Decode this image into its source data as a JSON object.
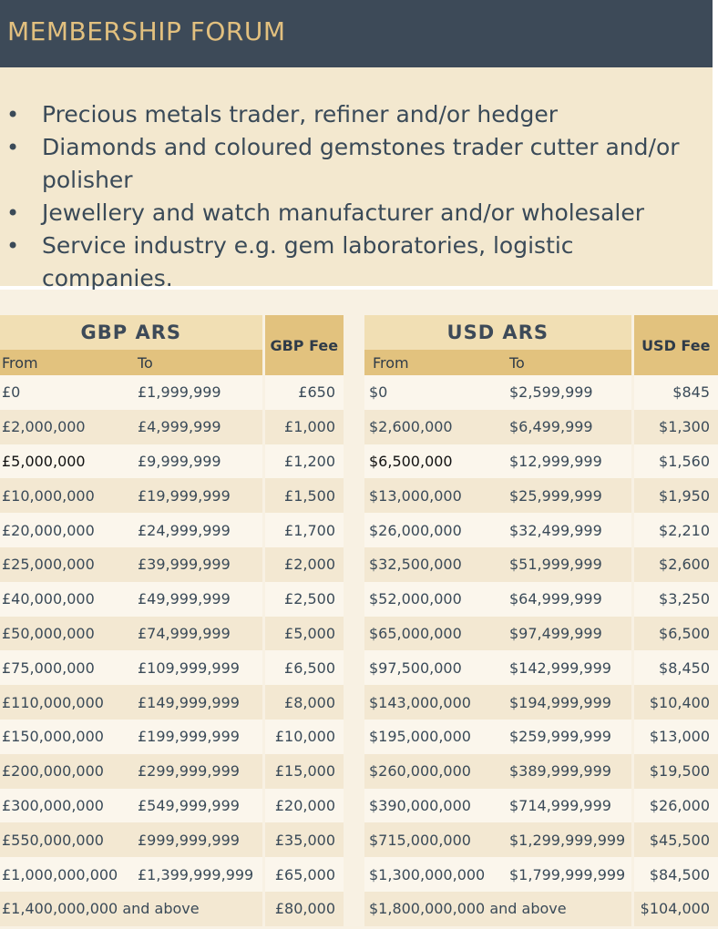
{
  "header": {
    "title": "MEMBERSHIP FORUM"
  },
  "intro": {
    "bullets": [
      "Precious metals trader, refiner and/or hedger",
      "Diamonds and coloured gemstones trader cutter and/or polisher",
      "Jewellery and watch manufacturer and/or wholesaler",
      "Service industry e.g. gem laboratories, logistic companies."
    ]
  },
  "gbp_table": {
    "group_title": "GBP ARS",
    "fee_title": "GBP Fee",
    "from_label": "From",
    "to_label": "To",
    "rows": [
      {
        "from": "£0",
        "to": "£1,999,999",
        "fee": "£650"
      },
      {
        "from": "£2,000,000",
        "to": "£4,999,999",
        "fee": "£1,000"
      },
      {
        "from": "£5,000,000",
        "to": "£9,999,999",
        "fee": "£1,200"
      },
      {
        "from": "£10,000,000",
        "to": "£19,999,999",
        "fee": "£1,500"
      },
      {
        "from": "£20,000,000",
        "to": "£24,999,999",
        "fee": "£1,700"
      },
      {
        "from": "£25,000,000",
        "to": "£39,999,999",
        "fee": "£2,000"
      },
      {
        "from": "£40,000,000",
        "to": "£49,999,999",
        "fee": "£2,500"
      },
      {
        "from": "£50,000,000",
        "to": "£74,999,999",
        "fee": "£5,000"
      },
      {
        "from": "£75,000,000",
        "to": "£109,999,999",
        "fee": "£6,500"
      },
      {
        "from": "£110,000,000",
        "to": "£149,999,999",
        "fee": "£8,000"
      },
      {
        "from": "£150,000,000",
        "to": "£199,999,999",
        "fee": "£10,000"
      },
      {
        "from": "£200,000,000",
        "to": "£299,999,999",
        "fee": "£15,000"
      },
      {
        "from": "£300,000,000",
        "to": "£549,999,999",
        "fee": "£20,000"
      },
      {
        "from": "£550,000,000",
        "to": "£999,999,999",
        "fee": "£35,000"
      },
      {
        "from": "£1,000,000,000",
        "to": "£1,399,999,999",
        "fee": "£65,000"
      }
    ],
    "last_row": {
      "range": "£1,400,000,000 and above",
      "fee": "£80,000"
    }
  },
  "usd_table": {
    "group_title": "USD ARS",
    "fee_title": "USD Fee",
    "from_label": "From",
    "to_label": "To",
    "rows": [
      {
        "from": "$0",
        "to": "$2,599,999",
        "fee": "$845"
      },
      {
        "from": "$2,600,000",
        "to": "$6,499,999",
        "fee": "$1,300"
      },
      {
        "from": "$6,500,000",
        "to": "$12,999,999",
        "fee": "$1,560"
      },
      {
        "from": "$13,000,000",
        "to": "$25,999,999",
        "fee": "$1,950"
      },
      {
        "from": "$26,000,000",
        "to": "$32,499,999",
        "fee": "$2,210"
      },
      {
        "from": "$32,500,000",
        "to": "$51,999,999",
        "fee": "$2,600"
      },
      {
        "from": "$52,000,000",
        "to": "$64,999,999",
        "fee": "$3,250"
      },
      {
        "from": "$65,000,000",
        "to": "$97,499,999",
        "fee": "$6,500"
      },
      {
        "from": "$97,500,000",
        "to": "$142,999,999",
        "fee": "$8,450"
      },
      {
        "from": "$143,000,000",
        "to": "$194,999,999",
        "fee": "$10,400"
      },
      {
        "from": "$195,000,000",
        "to": "$259,999,999",
        "fee": "$13,000"
      },
      {
        "from": "$260,000,000",
        "to": "$389,999,999",
        "fee": "$19,500"
      },
      {
        "from": "$390,000,000",
        "to": "$714,999,999",
        "fee": "$26,000"
      },
      {
        "from": "$715,000,000",
        "to": "$1,299,999,999",
        "fee": "$45,500"
      },
      {
        "from": "$1,300,000,000",
        "to": "$1,799,999,999",
        "fee": "$84,500"
      }
    ],
    "last_row": {
      "range": "$1,800,000,000 and above",
      "fee": "$104,000"
    }
  }
}
